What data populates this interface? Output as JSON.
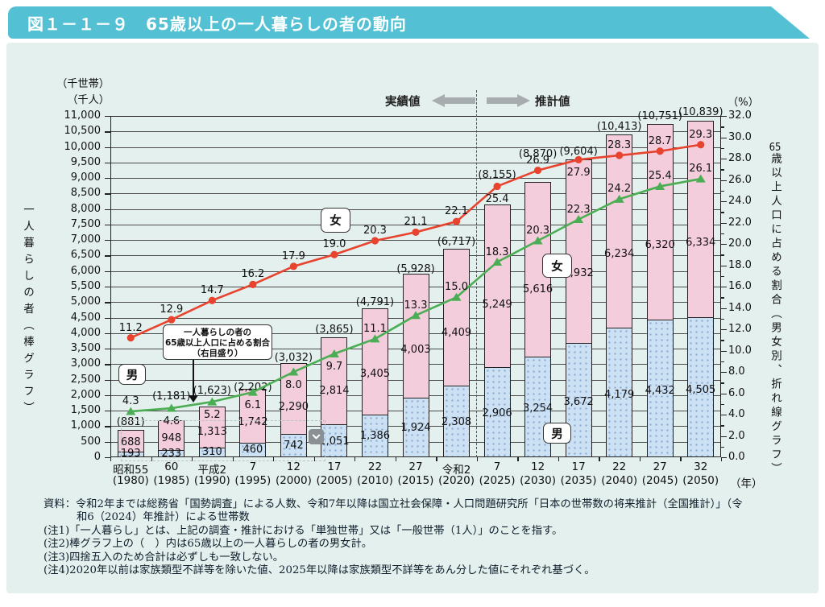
{
  "header": {
    "title": "図１－１－９　65歳以上の一人暮らしの者の動向"
  },
  "axes": {
    "left_unit_line1": "（千世帯）",
    "left_unit_line2": "（千人）",
    "left_title": "一人暮らしの者（棒グラフ）",
    "right_unit": "（%）",
    "right_title_num": "65",
    "right_title_rest": "歳以上人口に占める割合（男女別、折れ線グラフ）",
    "x_unit": "（年）"
  },
  "period_labels": {
    "actual": "実績値",
    "projected": "推計値"
  },
  "annotation_box": {
    "lines": [
      "一人暮らしの者の",
      "65歳以上人口に占める割合",
      "（右目盛り）"
    ]
  },
  "series_labels": {
    "male": "男",
    "female": "女"
  },
  "chart_data": {
    "type": "combo: stacked bar (counts, left axis) + line (percent, right axis)",
    "title": "65歳以上の一人暮らしの者の動向",
    "categories_era": [
      "昭和55",
      "60",
      "平成2",
      "7",
      "12",
      "17",
      "22",
      "27",
      "令和2",
      "7",
      "12",
      "17",
      "22",
      "27",
      "32"
    ],
    "categories_year": [
      "(1980)",
      "(1985)",
      "(1990)",
      "(1995)",
      "(2000)",
      "(2005)",
      "(2010)",
      "(2015)",
      "(2020)",
      "(2025)",
      "(2030)",
      "(2035)",
      "(2040)",
      "(2045)",
      "(2050)"
    ],
    "ylim_left": [
      0,
      11000
    ],
    "ytick_left_step": 500,
    "ylim_right": [
      0,
      32.0
    ],
    "ytick_right_step": 2.0,
    "grid": true,
    "projection_start_index": 9,
    "bars": {
      "male": [
        193,
        233,
        310,
        460,
        742,
        1051,
        1386,
        1924,
        2308,
        2906,
        3254,
        3672,
        4179,
        4432,
        4505
      ],
      "female": [
        688,
        948,
        1313,
        1742,
        2290,
        2814,
        3405,
        4003,
        4409,
        5249,
        5616,
        5932,
        6234,
        6320,
        6334
      ],
      "totals": [
        881,
        1181,
        1623,
        2202,
        3032,
        3865,
        4791,
        5928,
        6717,
        8155,
        8870,
        9604,
        10413,
        10751,
        10839
      ]
    },
    "lines": {
      "male_pct": [
        4.3,
        4.6,
        5.2,
        6.1,
        8.0,
        9.7,
        11.1,
        13.3,
        15.0,
        18.3,
        20.3,
        22.3,
        24.2,
        25.4,
        26.1
      ],
      "female_pct": [
        11.2,
        12.9,
        14.7,
        16.2,
        17.9,
        19.0,
        20.3,
        21.1,
        22.1,
        25.4,
        26.9,
        27.9,
        28.3,
        28.7,
        29.3
      ]
    }
  },
  "colors": {
    "header_bg": "#53C1D3",
    "panel_bg": "#E3F0ED",
    "bar_female": "#F3CDDC",
    "bar_male": "#CDE1F4",
    "bar_male_dot": "#8CA9CF",
    "line_female": "#E8432E",
    "line_male": "#4CAE54"
  },
  "footnotes": [
    "資料：令和2年までは総務省「国勢調査」による人数、令和7年以降は国立社会保障・人口問題研究所「日本の世帯数の将来推計（全国推計）」（令",
    "和6（2024）年推計）による世帯数",
    "(注1)「一人暮らし」とは、上記の調査・推計における「単独世帯」又は「一般世帯（1人）」のことを指す。",
    "(注2)棒グラフ上の（　）内は65歳以上の一人暮らしの者の男女計。",
    "(注3)四捨五入のため合計は必ずしも一致しない。",
    "(注4)2020年以前は家族類型不詳等を除いた値、2025年以降は家族類型不詳等をあん分した値にそれぞれ基づく。"
  ]
}
